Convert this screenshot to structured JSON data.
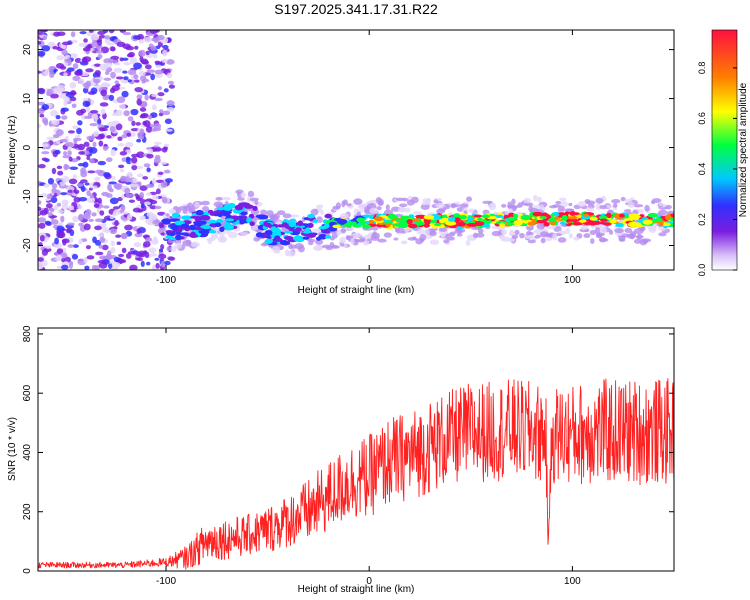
{
  "title": "S197.2025.341.17.31.R22",
  "colors": {
    "signal": "#ff2020",
    "spectrum_weak": "#7a1ee0",
    "spectrum_strong": "#ff1030",
    "axis": "#000000"
  },
  "chart_data": [
    {
      "type": "heatmap",
      "name": "spectrogram",
      "xlabel": "Height of straight line (km)",
      "ylabel": "Frequency (Hz)",
      "xlim": [
        -163,
        150
      ],
      "ylim": [
        -25,
        24
      ],
      "xticks": [
        -100,
        0,
        100
      ],
      "yticks": [
        20,
        10,
        0,
        -10,
        -20
      ],
      "grid": false,
      "description_of_content": "noise cloud for x<-97, dense band around -15 Hz from -100 to 150 km, strongest (red/yellow) from 0 to 150 km",
      "band": [
        {
          "x": -100,
          "y": -16.5
        },
        {
          "x": -80,
          "y": -15.5
        },
        {
          "x": -60,
          "y": -13.0
        },
        {
          "x": -50,
          "y": -17.5
        },
        {
          "x": -40,
          "y": -17.5
        },
        {
          "x": -30,
          "y": -16.5
        },
        {
          "x": -20,
          "y": -16.0
        },
        {
          "x": 0,
          "y": -15.0
        },
        {
          "x": 50,
          "y": -15.0
        },
        {
          "x": 100,
          "y": -14.5
        },
        {
          "x": 150,
          "y": -15.0
        }
      ],
      "colorbar": {
        "label": "Normalized spectral amplitude",
        "range": [
          0,
          0.95
        ],
        "ticks": [
          0.0,
          0.2,
          0.4,
          0.6,
          0.8
        ],
        "colormap": [
          "#ffffff",
          "#7a1ee0",
          "#3030ff",
          "#00e0ff",
          "#00ff40",
          "#ffff00",
          "#ff8000",
          "#ff1040"
        ]
      }
    },
    {
      "type": "line",
      "name": "snr",
      "xlabel": "Height of straight line (km)",
      "ylabel": "SNR (10 * v/v)",
      "xlim": [
        -163,
        150
      ],
      "ylim": [
        0,
        820
      ],
      "xticks": [
        -100,
        0,
        100
      ],
      "yticks": [
        0,
        200,
        400,
        600,
        800
      ],
      "grid": false,
      "series": [
        {
          "name": "SNR",
          "x": [
            -163,
            -140,
            -120,
            -100,
            -90,
            -80,
            -70,
            -60,
            -50,
            -40,
            -30,
            -20,
            -10,
            0,
            10,
            20,
            30,
            40,
            50,
            60,
            70,
            80,
            87,
            88,
            90,
            100,
            110,
            120,
            130,
            140,
            150
          ],
          "y": [
            20,
            20,
            20,
            30,
            45,
            100,
            110,
            120,
            140,
            170,
            200,
            250,
            300,
            320,
            370,
            390,
            420,
            450,
            470,
            470,
            480,
            470,
            460,
            90,
            460,
            460,
            470,
            470,
            470,
            470,
            470
          ],
          "spread": [
            10,
            10,
            10,
            15,
            40,
            70,
            70,
            70,
            80,
            90,
            110,
            120,
            130,
            140,
            150,
            150,
            160,
            160,
            170,
            170,
            170,
            170,
            170,
            0,
            170,
            170,
            180,
            180,
            180,
            180,
            180
          ]
        }
      ]
    }
  ]
}
